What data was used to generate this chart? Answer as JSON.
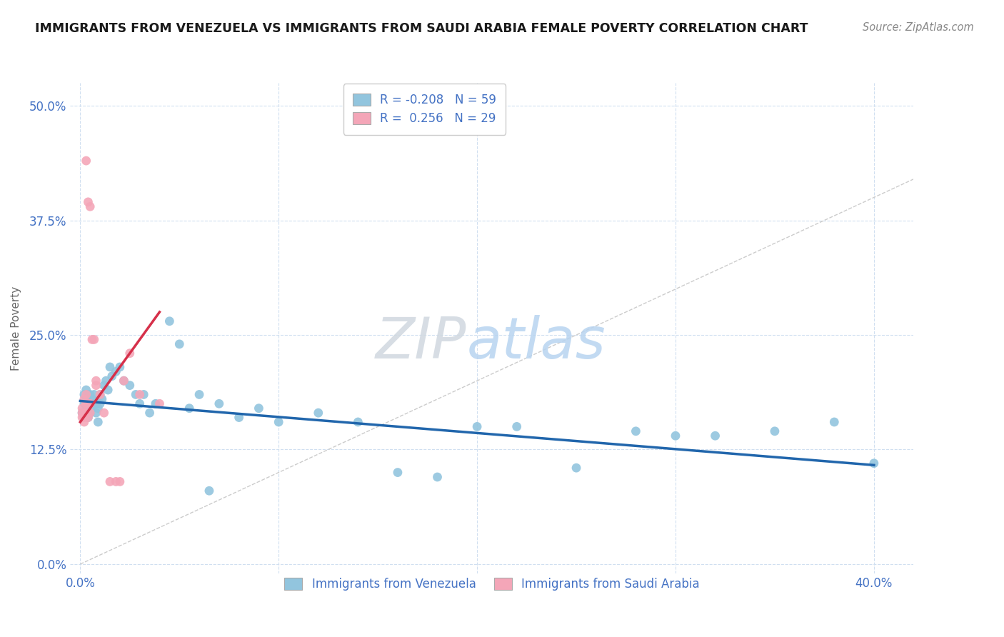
{
  "title": "IMMIGRANTS FROM VENEZUELA VS IMMIGRANTS FROM SAUDI ARABIA FEMALE POVERTY CORRELATION CHART",
  "source": "Source: ZipAtlas.com",
  "ylabel": "Female Poverty",
  "y_tick_labels": [
    "0.0%",
    "12.5%",
    "25.0%",
    "37.5%",
    "50.0%"
  ],
  "xlim": [
    -0.005,
    0.42
  ],
  "ylim": [
    -0.01,
    0.525
  ],
  "watermark_zip": "ZIP",
  "watermark_atlas": "atlas",
  "legend_blue_r": "-0.208",
  "legend_blue_n": "59",
  "legend_pink_r": "0.256",
  "legend_pink_n": "29",
  "blue_color": "#92c5de",
  "pink_color": "#f4a6b8",
  "trendline_blue": "#2166ac",
  "trendline_pink": "#d6304a",
  "ref_line_color": "#cccccc",
  "grid_color": "#d0dff0",
  "tick_color": "#4472c4",
  "blue_scatter_x": [
    0.001,
    0.002,
    0.002,
    0.003,
    0.003,
    0.003,
    0.004,
    0.004,
    0.004,
    0.005,
    0.005,
    0.005,
    0.006,
    0.006,
    0.007,
    0.007,
    0.008,
    0.008,
    0.009,
    0.009,
    0.01,
    0.01,
    0.011,
    0.012,
    0.013,
    0.014,
    0.015,
    0.016,
    0.018,
    0.02,
    0.022,
    0.025,
    0.028,
    0.032,
    0.038,
    0.045,
    0.05,
    0.06,
    0.07,
    0.08,
    0.09,
    0.1,
    0.12,
    0.14,
    0.16,
    0.18,
    0.2,
    0.22,
    0.25,
    0.28,
    0.3,
    0.32,
    0.35,
    0.38,
    0.4,
    0.03,
    0.035,
    0.055,
    0.065
  ],
  "blue_scatter_y": [
    0.165,
    0.175,
    0.185,
    0.17,
    0.18,
    0.19,
    0.16,
    0.175,
    0.185,
    0.165,
    0.175,
    0.185,
    0.17,
    0.18,
    0.175,
    0.185,
    0.165,
    0.175,
    0.155,
    0.17,
    0.175,
    0.185,
    0.18,
    0.195,
    0.2,
    0.19,
    0.215,
    0.205,
    0.21,
    0.215,
    0.2,
    0.195,
    0.185,
    0.185,
    0.175,
    0.265,
    0.24,
    0.185,
    0.175,
    0.16,
    0.17,
    0.155,
    0.165,
    0.155,
    0.1,
    0.095,
    0.15,
    0.15,
    0.105,
    0.145,
    0.14,
    0.14,
    0.145,
    0.155,
    0.11,
    0.175,
    0.165,
    0.17,
    0.08
  ],
  "pink_scatter_x": [
    0.001,
    0.001,
    0.001,
    0.002,
    0.002,
    0.002,
    0.003,
    0.003,
    0.003,
    0.003,
    0.004,
    0.004,
    0.004,
    0.005,
    0.005,
    0.005,
    0.006,
    0.007,
    0.008,
    0.008,
    0.01,
    0.012,
    0.015,
    0.018,
    0.02,
    0.022,
    0.025,
    0.03,
    0.04
  ],
  "pink_scatter_y": [
    0.16,
    0.165,
    0.17,
    0.155,
    0.16,
    0.18,
    0.165,
    0.175,
    0.185,
    0.44,
    0.16,
    0.175,
    0.395,
    0.165,
    0.175,
    0.39,
    0.245,
    0.245,
    0.195,
    0.2,
    0.185,
    0.165,
    0.09,
    0.09,
    0.09,
    0.2,
    0.23,
    0.185,
    0.175
  ],
  "blue_trendline_x0": 0.0,
  "blue_trendline_y0": 0.178,
  "blue_trendline_x1": 0.4,
  "blue_trendline_y1": 0.108,
  "pink_trendline_x0": 0.0,
  "pink_trendline_y0": 0.155,
  "pink_trendline_x1": 0.04,
  "pink_trendline_y1": 0.275
}
